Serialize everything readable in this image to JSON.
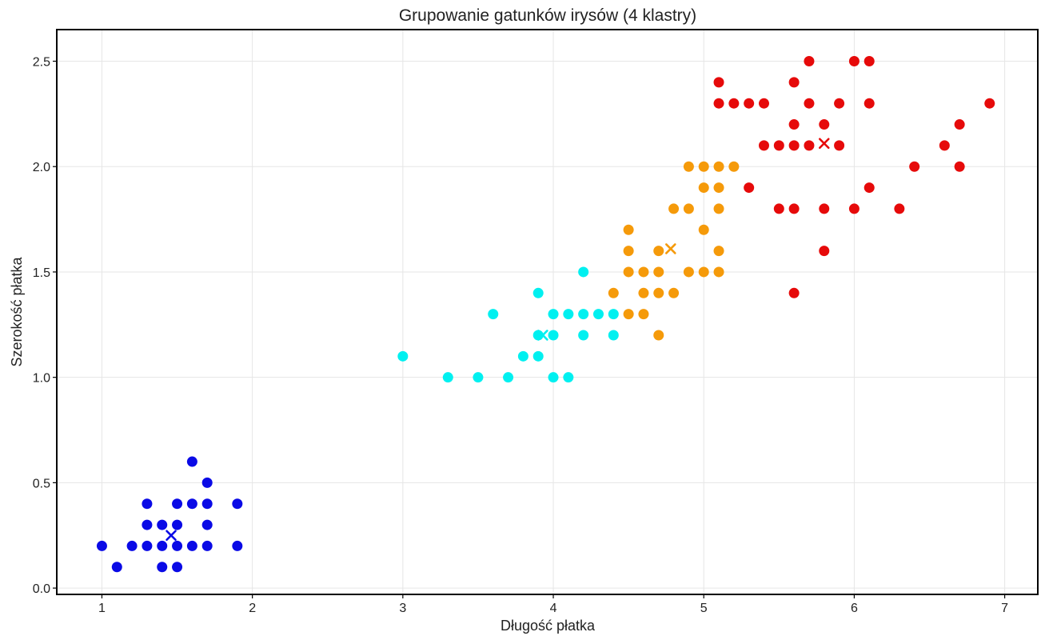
{
  "chart_data": {
    "type": "scatter",
    "title": "Grupowanie gatunków irysów (4 klastry)",
    "xlabel": "Długość płatka",
    "ylabel": "Szerokość płatka",
    "xlim": [
      0.7,
      7.22
    ],
    "ylim": [
      -0.03,
      2.65
    ],
    "xticks": [
      1,
      2,
      3,
      4,
      5,
      6,
      7
    ],
    "yticks": [
      0.0,
      0.5,
      1.0,
      1.5,
      2.0,
      2.5
    ],
    "grid": true,
    "legend": "none",
    "series": [
      {
        "color": "#0a0ae6",
        "points": [
          [
            1.0,
            0.2
          ],
          [
            1.1,
            0.1
          ],
          [
            1.2,
            0.2
          ],
          [
            1.3,
            0.2
          ],
          [
            1.3,
            0.3
          ],
          [
            1.3,
            0.4
          ],
          [
            1.4,
            0.1
          ],
          [
            1.4,
            0.2
          ],
          [
            1.4,
            0.3
          ],
          [
            1.5,
            0.1
          ],
          [
            1.5,
            0.2
          ],
          [
            1.5,
            0.3
          ],
          [
            1.5,
            0.4
          ],
          [
            1.6,
            0.2
          ],
          [
            1.6,
            0.4
          ],
          [
            1.6,
            0.6
          ],
          [
            1.7,
            0.2
          ],
          [
            1.7,
            0.3
          ],
          [
            1.7,
            0.4
          ],
          [
            1.7,
            0.5
          ],
          [
            1.9,
            0.2
          ],
          [
            1.9,
            0.4
          ]
        ],
        "centroid": [
          1.46,
          0.25
        ]
      },
      {
        "color": "#00f0f0",
        "points": [
          [
            3.0,
            1.1
          ],
          [
            3.3,
            1.0
          ],
          [
            3.5,
            1.0
          ],
          [
            3.6,
            1.3
          ],
          [
            3.7,
            1.0
          ],
          [
            3.8,
            1.1
          ],
          [
            3.9,
            1.1
          ],
          [
            3.9,
            1.2
          ],
          [
            3.9,
            1.4
          ],
          [
            4.0,
            1.0
          ],
          [
            4.0,
            1.2
          ],
          [
            4.0,
            1.3
          ],
          [
            4.1,
            1.0
          ],
          [
            4.1,
            1.3
          ],
          [
            4.2,
            1.2
          ],
          [
            4.2,
            1.3
          ],
          [
            4.2,
            1.5
          ],
          [
            4.3,
            1.3
          ],
          [
            4.4,
            1.2
          ],
          [
            4.4,
            1.3
          ]
        ],
        "centroid": [
          3.93,
          1.2
        ]
      },
      {
        "color": "#f59a0a",
        "points": [
          [
            4.4,
            1.4
          ],
          [
            4.5,
            1.3
          ],
          [
            4.5,
            1.5
          ],
          [
            4.5,
            1.6
          ],
          [
            4.5,
            1.7
          ],
          [
            4.6,
            1.3
          ],
          [
            4.6,
            1.4
          ],
          [
            4.6,
            1.5
          ],
          [
            4.7,
            1.2
          ],
          [
            4.7,
            1.4
          ],
          [
            4.7,
            1.5
          ],
          [
            4.7,
            1.6
          ],
          [
            4.8,
            1.4
          ],
          [
            4.8,
            1.8
          ],
          [
            4.9,
            1.5
          ],
          [
            4.9,
            1.8
          ],
          [
            4.9,
            2.0
          ],
          [
            5.0,
            1.5
          ],
          [
            5.0,
            1.7
          ],
          [
            5.0,
            1.9
          ],
          [
            5.0,
            2.0
          ],
          [
            5.1,
            1.5
          ],
          [
            5.1,
            1.6
          ],
          [
            5.1,
            1.8
          ],
          [
            5.1,
            1.9
          ],
          [
            5.1,
            2.0
          ],
          [
            5.2,
            2.0
          ]
        ],
        "centroid": [
          4.78,
          1.61
        ]
      },
      {
        "color": "#e60a0a",
        "points": [
          [
            5.1,
            2.3
          ],
          [
            5.1,
            2.4
          ],
          [
            5.2,
            2.3
          ],
          [
            5.3,
            1.9
          ],
          [
            5.3,
            2.3
          ],
          [
            5.4,
            2.1
          ],
          [
            5.4,
            2.3
          ],
          [
            5.5,
            1.8
          ],
          [
            5.5,
            2.1
          ],
          [
            5.6,
            1.4
          ],
          [
            5.6,
            1.8
          ],
          [
            5.6,
            2.1
          ],
          [
            5.6,
            2.2
          ],
          [
            5.6,
            2.4
          ],
          [
            5.7,
            2.1
          ],
          [
            5.7,
            2.3
          ],
          [
            5.7,
            2.5
          ],
          [
            5.8,
            1.6
          ],
          [
            5.8,
            1.8
          ],
          [
            5.8,
            2.2
          ],
          [
            5.9,
            2.1
          ],
          [
            5.9,
            2.3
          ],
          [
            6.0,
            1.8
          ],
          [
            6.0,
            2.5
          ],
          [
            6.1,
            1.9
          ],
          [
            6.1,
            2.3
          ],
          [
            6.1,
            2.5
          ],
          [
            6.3,
            1.8
          ],
          [
            6.4,
            2.0
          ],
          [
            6.6,
            2.1
          ],
          [
            6.7,
            2.0
          ],
          [
            6.7,
            2.2
          ],
          [
            6.9,
            2.3
          ]
        ],
        "centroid": [
          5.8,
          2.11
        ]
      }
    ]
  }
}
